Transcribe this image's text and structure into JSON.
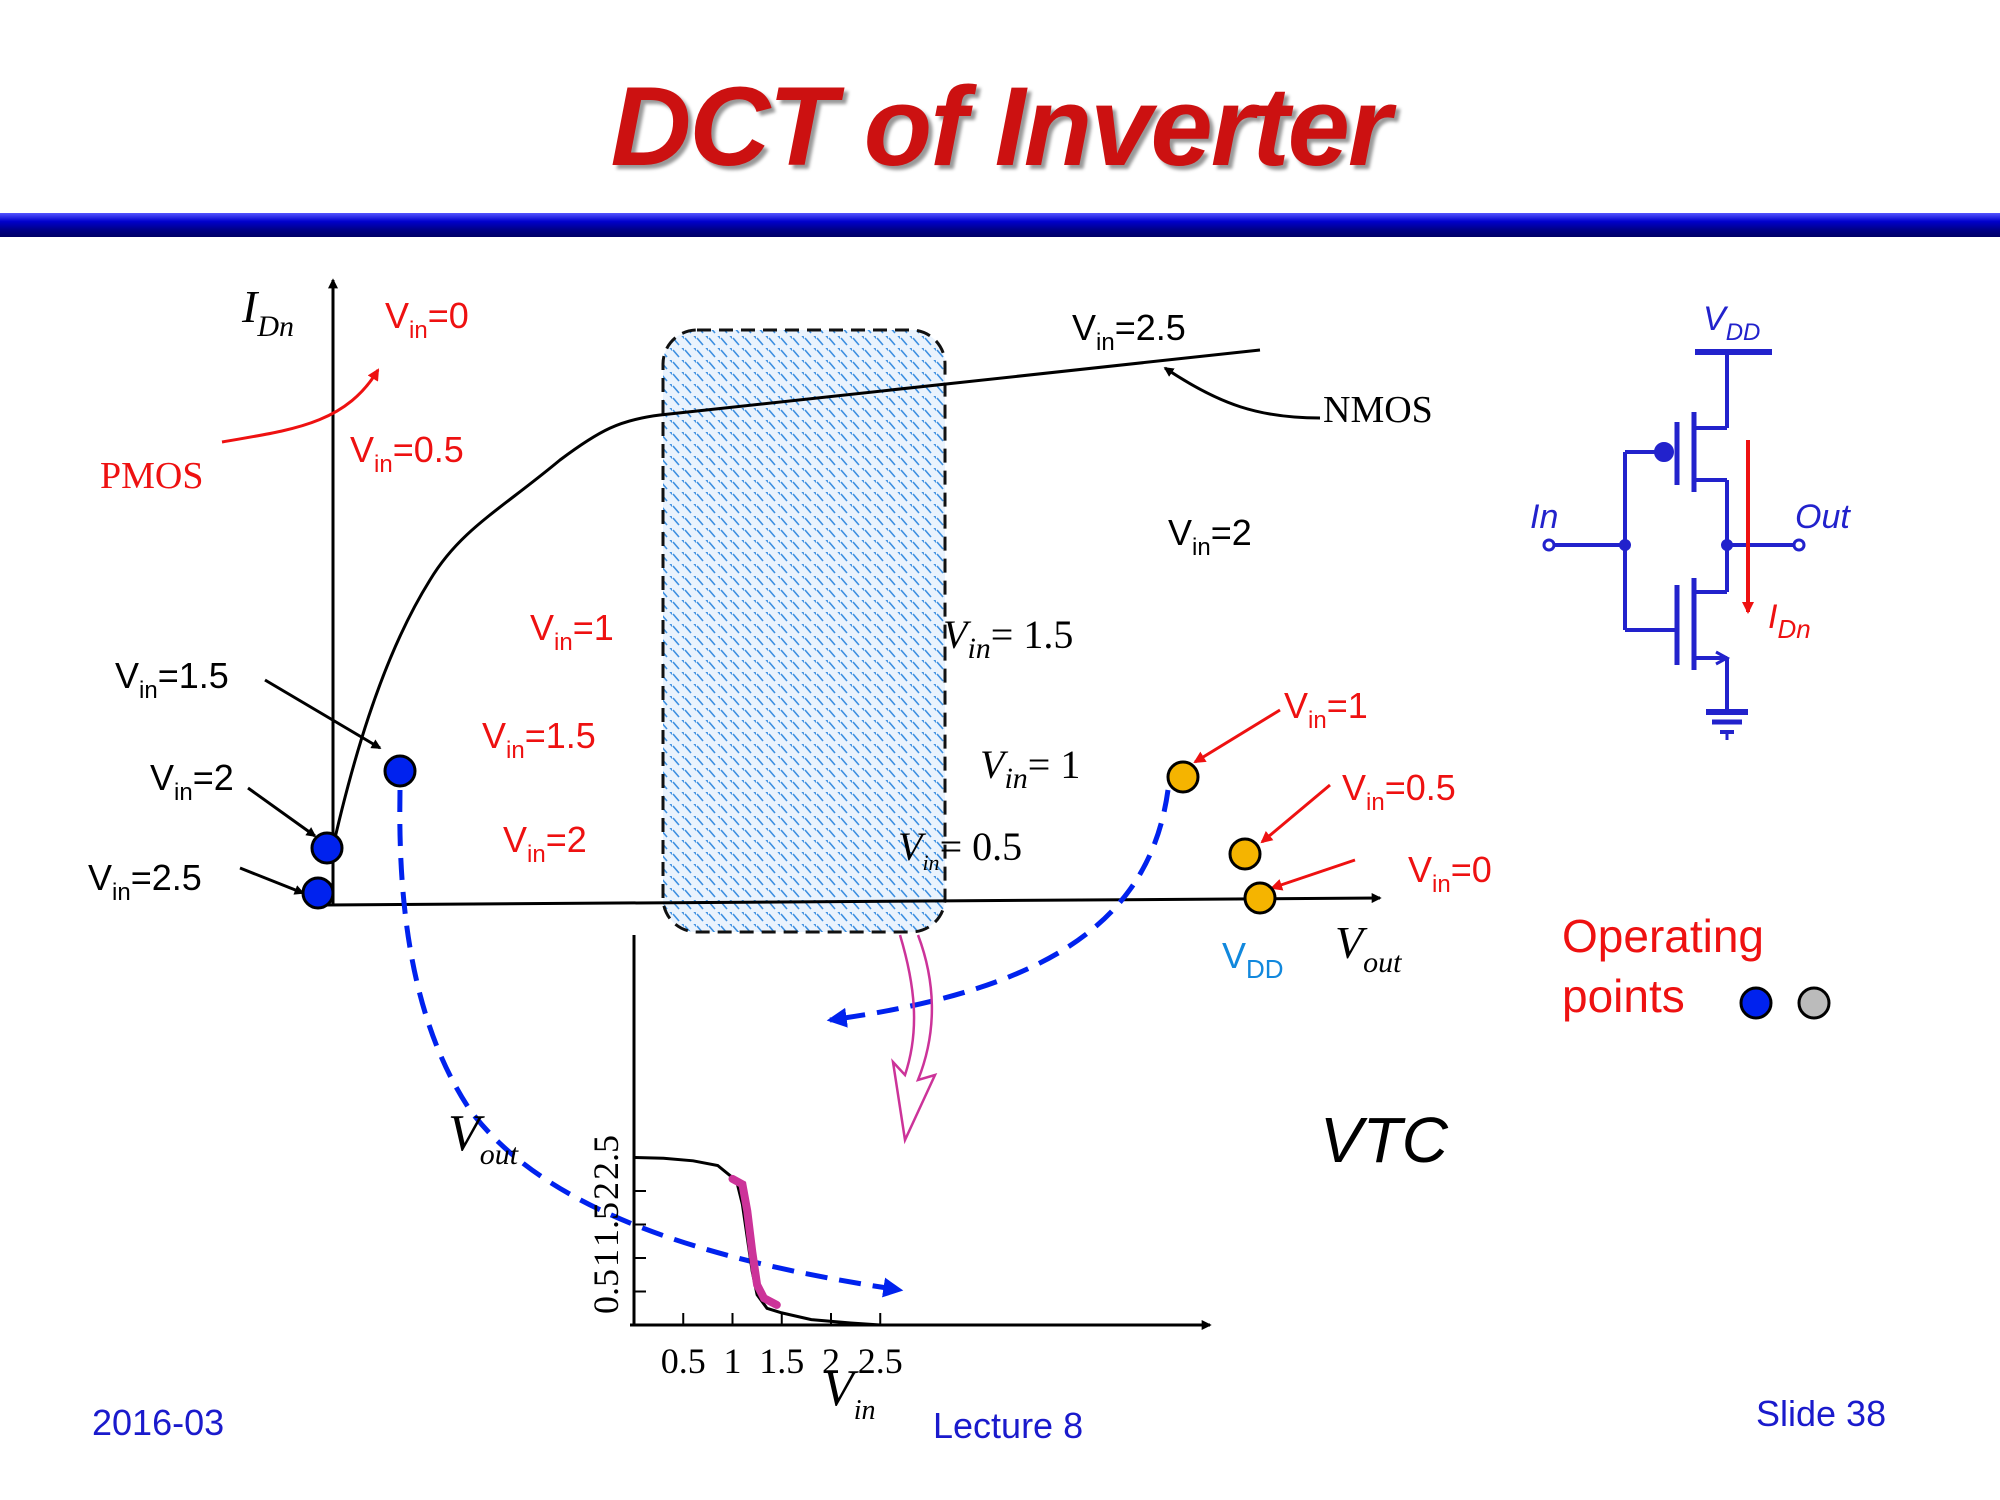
{
  "slide": {
    "title": "DCT of Inverter",
    "footer": {
      "date": "2016-03",
      "lecture": "Lecture 8",
      "slide_number": "Slide 38"
    }
  },
  "colors": {
    "title": "#cc1111",
    "blue_point": "#0022ee",
    "orange_point": "#f5b400",
    "highlight": "#cc3399",
    "circuit": "#2222cc",
    "current_arrow": "#ee1111"
  },
  "load_curves": {
    "y_axis_main": "I",
    "y_axis_sub": "Dn",
    "x_axis_main": "V",
    "x_axis_sub": "out",
    "vdd_main": "V",
    "vdd_sub": "DD",
    "nmos_label": "NMOS",
    "pmos_label": "PMOS",
    "nmos_curve_label": {
      "base": "V",
      "sub": "in",
      "val": "=2.5"
    },
    "pmos_labels": [
      {
        "base": "V",
        "sub": "in",
        "val": "=0"
      },
      {
        "base": "V",
        "sub": "in",
        "val": "=0.5"
      },
      {
        "base": "V",
        "sub": "in",
        "val": "=1"
      },
      {
        "base": "V",
        "sub": "in",
        "val": "=1.5"
      },
      {
        "base": "V",
        "sub": "in",
        "val": "=2"
      }
    ],
    "nmos_labels": [
      {
        "base": "V",
        "sub": "in",
        "val": "=2"
      },
      {
        "base": "V",
        "sub": "in",
        "val": "= 1.5"
      },
      {
        "base": "V",
        "sub": "in",
        "val": "= 1"
      },
      {
        "base": "V",
        "sub": "in",
        "val": "= 0.5"
      }
    ],
    "blue_point_labels": [
      {
        "base": "V",
        "sub": "in",
        "val": "=1.5"
      },
      {
        "base": "V",
        "sub": "in",
        "val": "=2"
      },
      {
        "base": "V",
        "sub": "in",
        "val": "=2.5"
      }
    ],
    "orange_point_labels": [
      {
        "base": "V",
        "sub": "in",
        "val": "=1"
      },
      {
        "base": "V",
        "sub": "in",
        "val": "=0.5"
      },
      {
        "base": "V",
        "sub": "in",
        "val": "=0"
      }
    ]
  },
  "vtc": {
    "label": "VTC",
    "x_axis_main": "V",
    "x_axis_sub": "in",
    "y_axis_main": "V",
    "y_axis_sub": "out",
    "x_ticks": [
      "0.5",
      "1",
      "1.5",
      "2",
      "2.5"
    ],
    "y_ticks": [
      "0.5",
      "1",
      "1.5",
      "2",
      "2.5"
    ],
    "curve": [
      [
        0,
        2.5
      ],
      [
        0.3,
        2.49
      ],
      [
        0.6,
        2.45
      ],
      [
        0.85,
        2.38
      ],
      [
        1.0,
        2.2
      ],
      [
        1.05,
        2.1
      ],
      [
        1.1,
        1.8
      ],
      [
        1.15,
        1.3
      ],
      [
        1.2,
        0.8
      ],
      [
        1.25,
        0.45
      ],
      [
        1.35,
        0.25
      ],
      [
        1.5,
        0.18
      ],
      [
        1.8,
        0.08
      ],
      [
        2.2,
        0.03
      ],
      [
        2.5,
        0.0
      ]
    ],
    "highlight_segment": [
      [
        1.0,
        2.18
      ],
      [
        1.1,
        2.1
      ],
      [
        1.15,
        1.7
      ],
      [
        1.2,
        1.1
      ],
      [
        1.25,
        0.6
      ],
      [
        1.32,
        0.4
      ],
      [
        1.45,
        0.3
      ]
    ]
  },
  "circuit": {
    "vdd_main": "V",
    "vdd_sub": "DD",
    "in_label": "In",
    "out_label": "Out",
    "current_main": "I",
    "current_sub": "Dn"
  },
  "legend": {
    "line1": "Operating",
    "line2": "points"
  }
}
